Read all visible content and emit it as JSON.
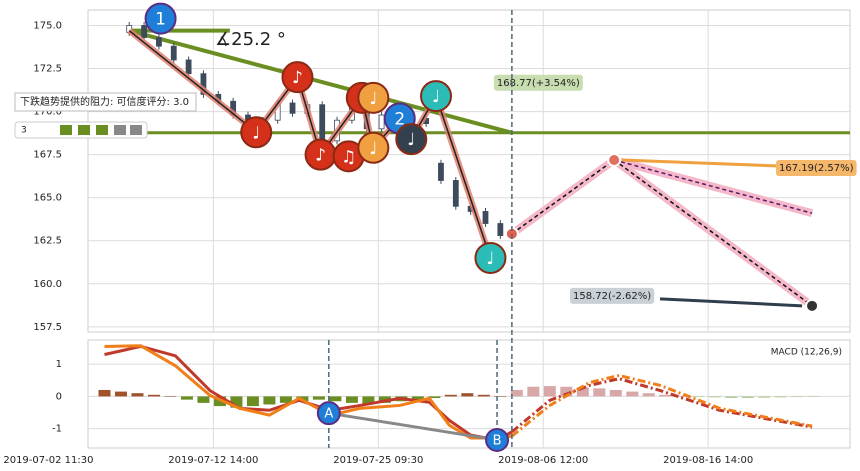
{
  "chart_data": [
    {
      "type": "candlestick",
      "xlim": [
        0.24,
        4.86
      ],
      "ylim": [
        157.2,
        175.9
      ],
      "yticks": [
        {
          "value": 175,
          "label": "175.0"
        },
        172.5,
        {
          "value": 170,
          "label": "170.0"
        },
        167.5,
        {
          "value": 165,
          "label": "165.0"
        },
        162.5,
        {
          "value": 160,
          "label": "160.0"
        },
        157.5
      ],
      "grid": true,
      "candles": {
        "x": [
          0.49,
          0.58,
          0.67,
          0.76,
          0.85,
          0.94,
          1.03,
          1.12,
          1.21,
          1.3,
          1.39,
          1.48,
          1.57,
          1.66,
          1.75,
          1.84,
          1.93,
          2.02,
          2.11,
          2.2,
          2.29,
          2.38,
          2.47,
          2.56,
          2.65,
          2.74
        ],
        "open": [
          174.6,
          175.0,
          174.3,
          173.8,
          173.0,
          172.2,
          171.0,
          170.6,
          169.8,
          168.6,
          169.5,
          170.5,
          169.9,
          170.4,
          168.3,
          169.5,
          170.2,
          169.0,
          169.8,
          168.8,
          169.6,
          167.0,
          166.0,
          164.5,
          164.2,
          163.5
        ],
        "high": [
          175.2,
          175.2,
          174.5,
          174.0,
          173.2,
          172.4,
          171.2,
          170.8,
          170.0,
          169.7,
          170.7,
          170.7,
          170.6,
          170.6,
          169.7,
          170.4,
          170.4,
          170.0,
          170.0,
          169.8,
          169.8,
          167.2,
          166.2,
          164.7,
          164.4,
          163.7
        ],
        "low": [
          174.4,
          174.1,
          173.6,
          172.8,
          172.0,
          170.8,
          170.4,
          169.6,
          168.4,
          168.4,
          169.3,
          169.7,
          169.7,
          168.1,
          168.1,
          169.3,
          168.8,
          168.8,
          168.6,
          168.6,
          169.1,
          165.8,
          164.3,
          164.0,
          163.3,
          162.6
        ],
        "close": [
          175.0,
          174.3,
          173.8,
          173.0,
          172.2,
          171.0,
          170.6,
          169.8,
          168.6,
          169.5,
          170.5,
          169.9,
          170.4,
          168.3,
          169.5,
          170.2,
          169.0,
          169.8,
          168.8,
          169.6,
          169.3,
          166.0,
          164.5,
          164.2,
          163.5,
          162.8
        ],
        "up_color": "#ffffff",
        "down_color": "#3d4b5c"
      },
      "resistance": {
        "x": [
          0.49,
          2.81
        ],
        "values": [
          174.7,
          168.77
        ],
        "level": 168.77,
        "top_end": 1.1,
        "color": "#6b8e23"
      },
      "angle_label": "∡25.2 °",
      "tooltip": "下跌趋势提供的阻力: 可信度评分: 3.0",
      "score": "3",
      "zigzag": {
        "x": [
          0.49,
          1.26,
          1.51,
          1.65,
          1.9,
          1.97,
          2.13,
          2.2,
          2.35,
          2.68
        ],
        "values": [
          174.7,
          168.8,
          172.0,
          167.5,
          170.8,
          167.9,
          169.6,
          168.4,
          170.9,
          161.5
        ],
        "color": "#e08070"
      },
      "markers": [
        {
          "label": "1",
          "x": 0.68,
          "y": 175.4,
          "color": "#1f7fd8"
        },
        {
          "label": "♩",
          "x": 1.26,
          "y": 168.8,
          "color": "#d4301a"
        },
        {
          "label": "♪",
          "x": 1.51,
          "y": 172.0,
          "color": "#d4301a"
        },
        {
          "label": "♪",
          "x": 1.65,
          "y": 167.5,
          "color": "#d4301a"
        },
        {
          "label": "♫",
          "x": 1.82,
          "y": 167.4,
          "color": "#d4301a"
        },
        {
          "label": "♩",
          "x": 1.9,
          "y": 170.8,
          "color": "#d4301a"
        },
        {
          "label": "♩",
          "x": 1.97,
          "y": 170.8,
          "color": "#f0a040"
        },
        {
          "label": "♩",
          "x": 1.97,
          "y": 167.9,
          "color": "#f0a040"
        },
        {
          "label": "2",
          "x": 2.13,
          "y": 169.6,
          "color": "#1f7fd8"
        },
        {
          "label": "♩",
          "x": 2.2,
          "y": 168.4,
          "color": "#33414e"
        },
        {
          "label": "♩",
          "x": 2.35,
          "y": 170.9,
          "color": "#2bbcb8"
        },
        {
          "label": "♩",
          "x": 2.68,
          "y": 161.5,
          "color": "#2bbcb8"
        }
      ],
      "forecast": {
        "x": [
          2.81,
          3.43,
          4.63
        ],
        "values": [
          162.9,
          167.19,
          158.72
        ],
        "branch_x": [
          3.43,
          4.63
        ],
        "branch_values": [
          167.19,
          164.1
        ],
        "color": "#f4b8c8"
      },
      "price_labels": [
        {
          "value": 168.77,
          "label": "168.77(+3.54%)",
          "color": "#c8ddb0"
        },
        {
          "value": 167.19,
          "label": "167.19(2.57%)",
          "color": "#f5b76a"
        },
        {
          "value": 158.72,
          "label": "158.72(-2.62%)",
          "color": "#c9d0d6"
        }
      ]
    },
    {
      "type": "macd",
      "title": "MACD (12,26,9)",
      "xlim": [
        0.24,
        4.86
      ],
      "ylim": [
        -1.6,
        1.75
      ],
      "yticks": [
        -1,
        0,
        1
      ],
      "xticks": [
        {
          "value": 0,
          "label": "2019-07-02 11:30"
        },
        {
          "value": 1,
          "label": "2019-07-12 14:00"
        },
        {
          "value": 2,
          "label": "2019-07-25 09:30"
        },
        {
          "value": 3,
          "label": "2019-08-06 12:00"
        },
        {
          "value": 4,
          "label": "2019-08-16 14:00"
        }
      ],
      "grid": true,
      "forecast_start": 2.81,
      "series": [
        {
          "color": "#c0392b",
          "style": "solid",
          "x": [
            0.34,
            0.56,
            0.77,
            0.98,
            1.16,
            1.34,
            1.52,
            1.71,
            1.89,
            2.13,
            2.31,
            2.43,
            2.56,
            2.72,
            2.81
          ],
          "values": [
            1.3,
            1.55,
            1.26,
            0.18,
            -0.37,
            -0.43,
            -0.12,
            -0.43,
            -0.28,
            -0.06,
            -0.18,
            -0.74,
            -1.2,
            -1.35,
            -1.1
          ]
        },
        {
          "color": "#f07f1a",
          "style": "solid",
          "x": [
            0.34,
            0.56,
            0.77,
            0.98,
            1.16,
            1.34,
            1.52,
            1.71,
            1.89,
            2.13,
            2.31,
            2.43,
            2.56,
            2.72,
            2.81
          ],
          "values": [
            1.55,
            1.57,
            0.95,
            0.03,
            -0.37,
            -0.58,
            -0.06,
            -0.58,
            -0.37,
            -0.28,
            -0.06,
            -0.89,
            -1.29,
            -1.29,
            -1.23
          ]
        },
        {
          "color": "#c0392b",
          "style": "dashdot",
          "x": [
            2.81,
            3.04,
            3.28,
            3.46,
            3.71,
            4.07,
            4.63
          ],
          "values": [
            -1.1,
            -0.12,
            0.34,
            0.55,
            0.18,
            -0.43,
            -0.95
          ]
        },
        {
          "color": "#f07f1a",
          "style": "dashdot",
          "x": [
            2.81,
            3.04,
            3.28,
            3.46,
            3.71,
            4.07,
            4.63
          ],
          "values": [
            -1.23,
            -0.28,
            0.43,
            0.65,
            0.34,
            -0.37,
            -0.92
          ]
        }
      ],
      "histogram": {
        "x": [
          0.34,
          0.44,
          0.54,
          0.64,
          0.74,
          0.84,
          0.94,
          1.04,
          1.14,
          1.24,
          1.34,
          1.44,
          1.54,
          1.64,
          1.74,
          1.84,
          1.94,
          2.04,
          2.14,
          2.24,
          2.34,
          2.44,
          2.54,
          2.64,
          2.74,
          2.84,
          2.94,
          3.04,
          3.14,
          3.24,
          3.34,
          3.44,
          3.54,
          3.64,
          3.74,
          3.84,
          3.94,
          4.04,
          4.14,
          4.24,
          4.34,
          4.44,
          4.54,
          4.64
        ],
        "values": [
          0.2,
          0.15,
          0.1,
          0.05,
          0.0,
          -0.1,
          -0.2,
          -0.3,
          -0.35,
          -0.3,
          -0.25,
          -0.2,
          -0.15,
          -0.1,
          -0.15,
          -0.2,
          -0.25,
          -0.2,
          -0.15,
          -0.1,
          -0.05,
          0.05,
          0.1,
          0.05,
          0,
          0.2,
          0.3,
          0.32,
          0.3,
          0.28,
          0.25,
          0.2,
          0.15,
          0.1,
          0.05,
          0.02,
          -0.02,
          -0.03,
          -0.05,
          -0.05,
          -0.04,
          -0.03,
          -0.02,
          -0.01
        ],
        "up_color": "#a0522d",
        "down_color": "#6b8e23",
        "up_forecast_color": "#d8a8a8",
        "down_forecast_color": "#b5cf98"
      },
      "points": [
        {
          "label": "A",
          "x": 1.7,
          "y": -0.52
        },
        {
          "label": "B",
          "x": 2.72,
          "y": -1.35
        }
      ]
    }
  ]
}
